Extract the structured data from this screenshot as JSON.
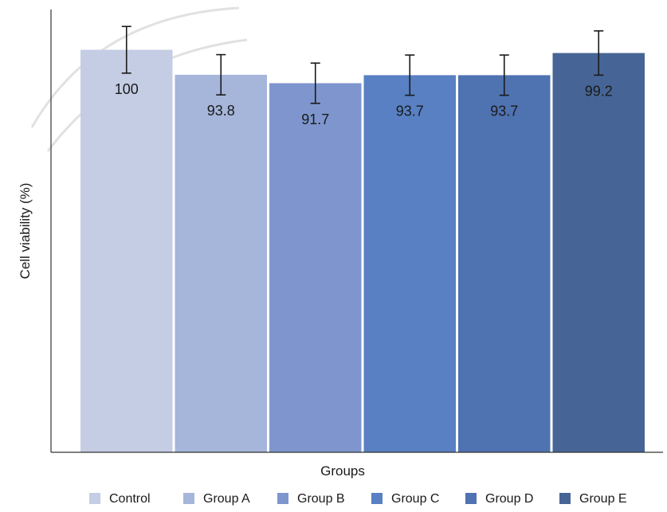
{
  "chart_data": {
    "type": "bar",
    "categories": [
      "Control",
      "Group A",
      "Group B",
      "Group C",
      "Group D",
      "Group E"
    ],
    "values": [
      100,
      93.8,
      91.7,
      93.7,
      93.7,
      99.2
    ],
    "error": [
      5.8,
      5.0,
      5.0,
      5.0,
      5.0,
      5.5
    ],
    "data_labels": [
      "100",
      "93.8",
      "91.7",
      "93.7",
      "93.7",
      "99.2"
    ],
    "colors": [
      "#c5cde4",
      "#a6b5da",
      "#7e96cd",
      "#5880c2",
      "#4f72b1",
      "#466596"
    ],
    "title": "",
    "xlabel": "Groups",
    "ylabel": "Cell viability (%)",
    "ylim": [
      0,
      110
    ],
    "grid": false,
    "legend": "bottom"
  }
}
